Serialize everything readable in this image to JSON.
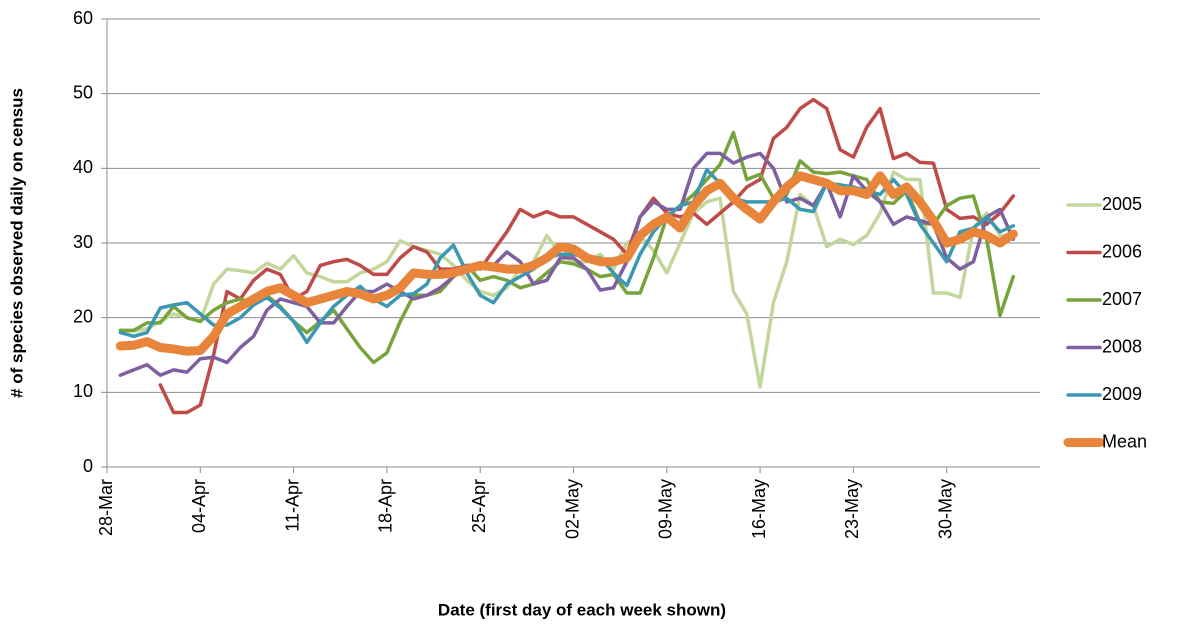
{
  "chart_data": {
    "type": "line",
    "x_label": "Date (first day of each week shown)",
    "y_label": "# of species observed daily on census",
    "categories": [
      "28-Mar",
      null,
      null,
      null,
      null,
      null,
      null,
      "04-Apr",
      null,
      null,
      null,
      null,
      null,
      null,
      "11-Apr",
      null,
      null,
      null,
      null,
      null,
      null,
      "18-Apr",
      null,
      null,
      null,
      null,
      null,
      null,
      "25-Apr",
      null,
      null,
      null,
      null,
      null,
      null,
      "02-May",
      null,
      null,
      null,
      null,
      null,
      null,
      "09-May",
      null,
      null,
      null,
      null,
      null,
      null,
      "16-May",
      null,
      null,
      null,
      null,
      null,
      null,
      "23-May",
      null,
      null,
      null,
      null,
      null,
      null,
      "30-May",
      null,
      null,
      null,
      null,
      null,
      null
    ],
    "ylim": [
      0,
      60
    ],
    "yticks": [
      0,
      10,
      20,
      30,
      40,
      50,
      60
    ],
    "grid": true,
    "legend": "right",
    "series": [
      {
        "name": "2005",
        "color": "#c3d69b",
        "values": [
          null,
          18.3,
          18.2,
          18.5,
          19.5,
          20.5,
          20,
          19.5,
          24.5,
          26.5,
          26.3,
          26,
          27.3,
          26.5,
          28.3,
          26,
          25.5,
          24.8,
          24.8,
          26,
          26.5,
          27.5,
          30.3,
          29.5,
          29,
          28.5,
          27,
          25,
          23.5,
          23,
          24,
          26.5,
          27.5,
          31,
          28.5,
          27.5,
          27.5,
          28.5,
          26.5,
          30,
          31,
          29,
          26,
          30,
          34,
          35.5,
          36,
          23.5,
          20.5,
          10.7,
          22,
          27.5,
          36.5,
          35,
          29.5,
          30.5,
          29.8,
          31,
          34,
          39.5,
          38.5,
          38.5,
          23.3,
          23.3,
          22.7,
          32,
          34,
          31,
          31,
          null
        ]
      },
      {
        "name": "2006",
        "color": "#be4b48",
        "values": [
          null,
          null,
          null,
          null,
          11,
          7.3,
          7.3,
          8.3,
          15,
          23.5,
          22.5,
          25,
          26.5,
          25.8,
          22.5,
          23.5,
          27,
          27.5,
          27.8,
          27,
          25.8,
          25.8,
          28,
          29.5,
          28.8,
          26.5,
          26.5,
          27,
          26.5,
          29,
          31.5,
          34.5,
          33.5,
          34.2,
          33.5,
          33.5,
          32.5,
          31.5,
          30.5,
          28.5,
          33.5,
          36,
          34,
          33.5,
          34,
          32.5,
          34,
          35.5,
          37.5,
          38.5,
          44,
          45.5,
          48,
          49.2,
          48,
          42.5,
          41.5,
          45.5,
          48,
          41.3,
          42,
          40.8,
          40.7,
          34.5,
          33.3,
          33.5,
          32.5,
          34,
          36.3,
          null
        ]
      },
      {
        "name": "2007",
        "color": "#77a33b",
        "values": [
          null,
          18.3,
          18.3,
          19.3,
          19.3,
          21.5,
          20,
          19.5,
          21,
          22,
          22.5,
          22,
          23,
          21.5,
          19.5,
          18,
          19.5,
          21,
          18.5,
          16,
          14,
          15.3,
          19.5,
          23,
          23,
          23.5,
          25.5,
          27,
          25,
          25.5,
          25,
          24,
          24.5,
          26,
          27.5,
          27.2,
          26.5,
          25.5,
          25.8,
          23.3,
          23.3,
          28,
          33.5,
          35,
          36.5,
          38.5,
          40.5,
          44.8,
          38.5,
          39.2,
          36,
          36.5,
          41,
          39.5,
          39.3,
          39.5,
          39,
          38.5,
          35.5,
          35.3,
          37,
          32.7,
          32.5,
          35,
          36,
          36.3,
          30.5,
          20.3,
          25.5,
          null
        ]
      },
      {
        "name": "2008",
        "color": "#7e5fa0",
        "values": [
          null,
          12.3,
          13,
          13.7,
          12.3,
          13,
          12.7,
          14.5,
          14.7,
          14,
          16,
          17.5,
          21,
          22.5,
          22,
          21.5,
          19.3,
          19.3,
          21.5,
          23.5,
          23.5,
          24.5,
          23.5,
          22.5,
          23,
          24,
          25.5,
          27,
          27,
          27,
          28.8,
          27.5,
          24.5,
          25,
          28,
          28,
          26.5,
          23.7,
          24,
          27.5,
          33.5,
          35.5,
          34.5,
          34.5,
          40,
          42,
          42,
          40.7,
          41.5,
          42,
          40,
          35.5,
          36,
          35,
          38,
          33.5,
          39,
          37,
          35.5,
          32.5,
          33.5,
          33,
          32.5,
          28,
          26.5,
          27.5,
          33.5,
          34.5,
          30.5,
          null
        ]
      },
      {
        "name": "2009",
        "color": "#3c98b0",
        "values": [
          null,
          18,
          17.5,
          18,
          21.3,
          21.7,
          22,
          20.5,
          19,
          19,
          20,
          21.7,
          22.7,
          21.3,
          19.5,
          16.7,
          19.3,
          21.5,
          23,
          24.2,
          22.5,
          21.5,
          23,
          23.2,
          24.5,
          28,
          29.7,
          26,
          23,
          22,
          24.5,
          25.5,
          26.5,
          28,
          28.5,
          28.5,
          28,
          28,
          26,
          24.3,
          28.5,
          31.5,
          33.5,
          35,
          35.5,
          39.8,
          38,
          36,
          35.5,
          35.5,
          35.5,
          36,
          34.5,
          34.2,
          38,
          37.8,
          37.5,
          37,
          36.5,
          38.5,
          36.5,
          32.5,
          30,
          27.5,
          31.5,
          32,
          33.5,
          31.5,
          32.3,
          null
        ]
      },
      {
        "name": "Mean",
        "color": "#e8853b",
        "values": [
          null,
          16.2,
          16.3,
          16.8,
          16,
          15.8,
          15.5,
          15.6,
          17.5,
          20.5,
          21.5,
          22.5,
          23.5,
          24,
          23,
          22,
          22.5,
          23,
          23.5,
          23.2,
          22.5,
          23,
          24,
          26,
          25.8,
          25.8,
          26,
          26.5,
          27,
          26.8,
          26.5,
          26.5,
          27,
          28,
          29.5,
          29.2,
          28,
          27.5,
          27.5,
          28,
          31,
          32.5,
          33.5,
          32,
          35,
          37,
          38,
          36,
          34.5,
          33.2,
          35.5,
          37.5,
          39,
          38.5,
          38,
          37,
          37,
          36.5,
          39,
          36.5,
          37.5,
          35.5,
          33,
          30,
          30.5,
          31.5,
          31,
          30,
          31.2,
          null
        ]
      }
    ]
  }
}
